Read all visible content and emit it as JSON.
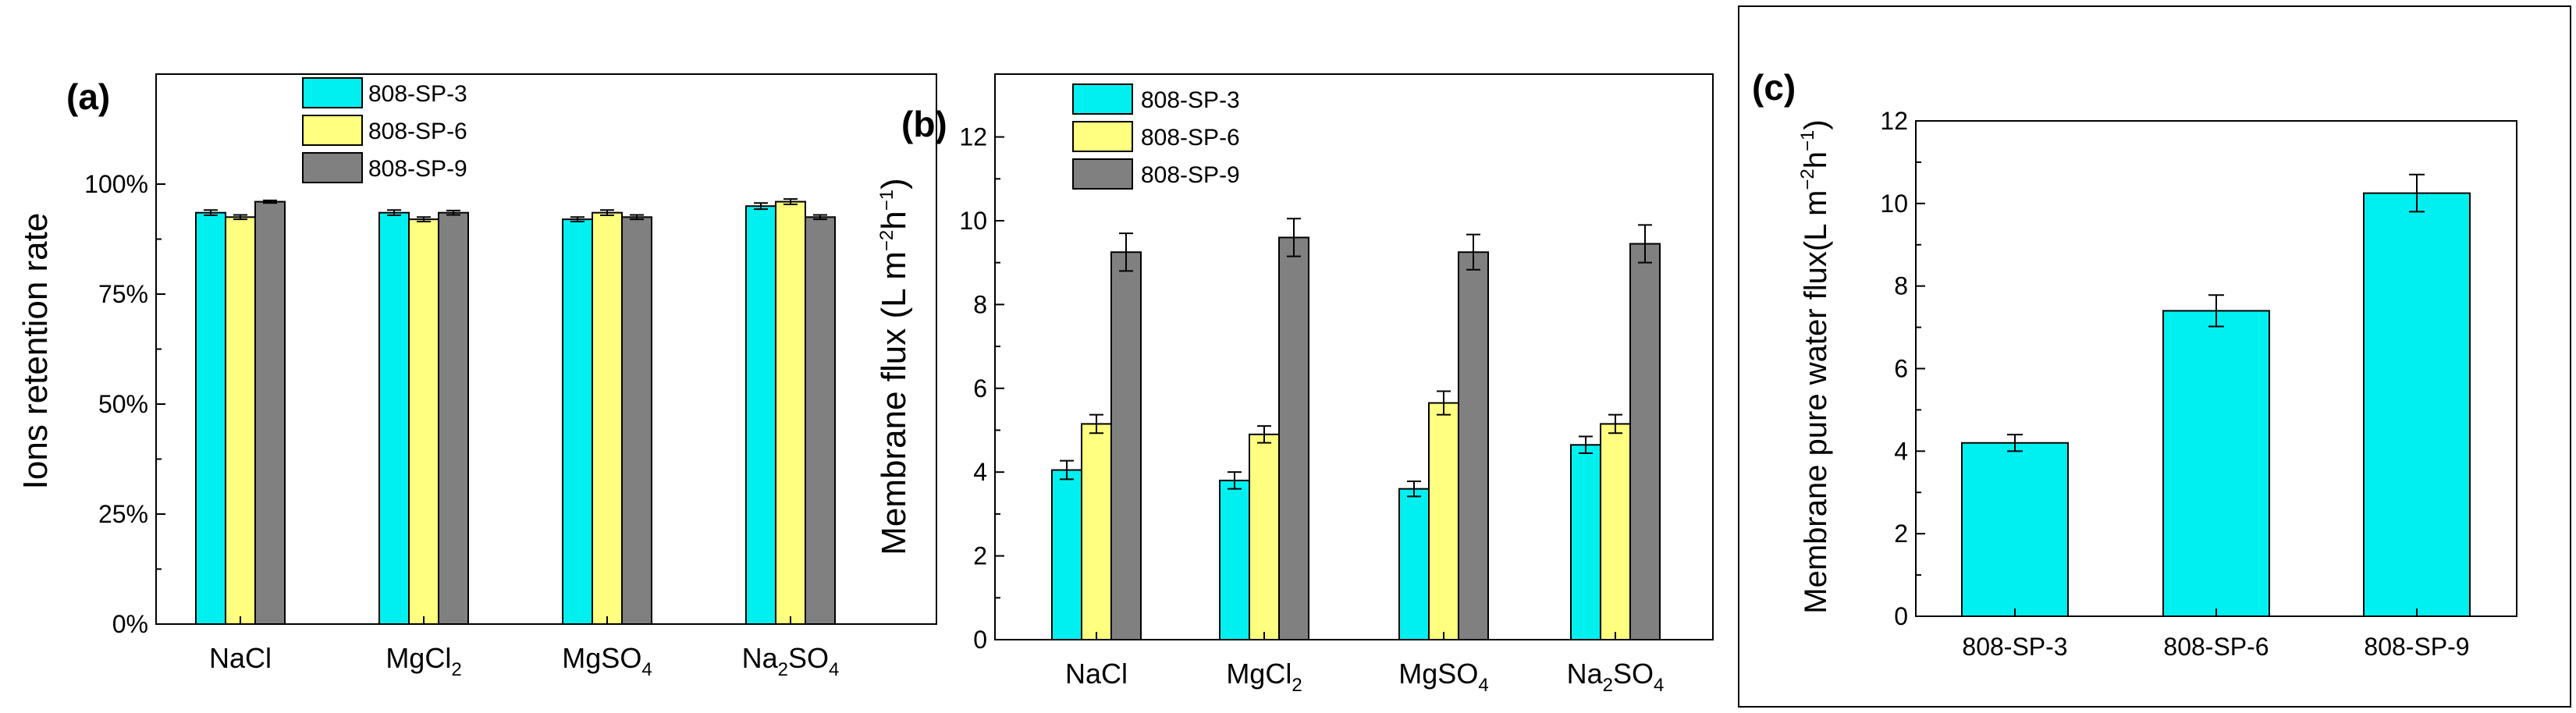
{
  "colors": {
    "series1": "#00f0f0",
    "series2": "#ffff80",
    "series3": "#808080",
    "axis": "#000000"
  },
  "chart_data": [
    {
      "panel_label": "(a)",
      "type": "bar",
      "ylabel": "Ions retention rate",
      "yticks": [
        "0%",
        "25%",
        "50%",
        "75%",
        "100%"
      ],
      "ylim": [
        0,
        125
      ],
      "categories": [
        {
          "main": "NaCl",
          "sub": ""
        },
        {
          "main": "MgCl",
          "sub": "2",
          "tail": ""
        },
        {
          "main": "MgSO",
          "sub": "4",
          "tail": ""
        },
        {
          "main": "Na",
          "sub": "2",
          "tail": "SO",
          "sub2": "4"
        }
      ],
      "series": [
        {
          "name": "808-SP-3",
          "values": [
            93.5,
            93.5,
            92.0,
            95.0
          ],
          "errors": [
            0.6,
            0.6,
            0.5,
            0.7
          ]
        },
        {
          "name": "808-SP-6",
          "values": [
            92.5,
            92.0,
            93.5,
            96.0
          ],
          "errors": [
            0.5,
            0.5,
            0.6,
            0.6
          ]
        },
        {
          "name": "808-SP-9",
          "values": [
            96.0,
            93.5,
            92.5,
            92.5
          ],
          "errors": [
            0.3,
            0.5,
            0.5,
            0.5
          ]
        }
      ],
      "legend": [
        "808-SP-3",
        "808-SP-6",
        "808-SP-9"
      ]
    },
    {
      "panel_label": "(b)",
      "type": "bar",
      "ylabel": "Membrane flux (L m",
      "ylabel_sup1": "−2",
      "ylabel_mid": "h",
      "ylabel_sup2": "−1",
      "ylabel_end": ")",
      "yticks": [
        "0",
        "2",
        "4",
        "6",
        "8",
        "10",
        "12"
      ],
      "ylim": [
        0,
        13.5
      ],
      "categories": [
        {
          "main": "NaCl",
          "sub": ""
        },
        {
          "main": "MgCl",
          "sub": "2",
          "tail": ""
        },
        {
          "main": "MgSO",
          "sub": "4",
          "tail": ""
        },
        {
          "main": "Na",
          "sub": "2",
          "tail": "SO",
          "sub2": "4"
        }
      ],
      "series": [
        {
          "name": "808-SP-3",
          "values": [
            4.05,
            3.8,
            3.6,
            4.65
          ],
          "errors": [
            0.22,
            0.2,
            0.18,
            0.2
          ]
        },
        {
          "name": "808-SP-6",
          "values": [
            5.15,
            4.9,
            5.65,
            5.15
          ],
          "errors": [
            0.22,
            0.2,
            0.28,
            0.22
          ]
        },
        {
          "name": "808-SP-9",
          "values": [
            9.25,
            9.6,
            9.25,
            9.45
          ],
          "errors": [
            0.45,
            0.45,
            0.42,
            0.45
          ]
        }
      ],
      "legend": [
        "808-SP-3",
        "808-SP-6",
        "808-SP-9"
      ]
    },
    {
      "panel_label": "(c)",
      "type": "bar",
      "ylabel": "Membrane pure water flux(L m",
      "ylabel_sup1": "−2",
      "ylabel_mid": "h",
      "ylabel_sup2": "−1",
      "ylabel_end": ")",
      "yticks": [
        "0",
        "2",
        "4",
        "6",
        "8",
        "10",
        "12"
      ],
      "ylim": [
        0,
        12
      ],
      "categories": [
        "808-SP-3",
        "808-SP-6",
        "808-SP-9"
      ],
      "values": [
        4.2,
        7.4,
        10.25
      ],
      "errors": [
        0.2,
        0.38,
        0.45
      ]
    }
  ]
}
